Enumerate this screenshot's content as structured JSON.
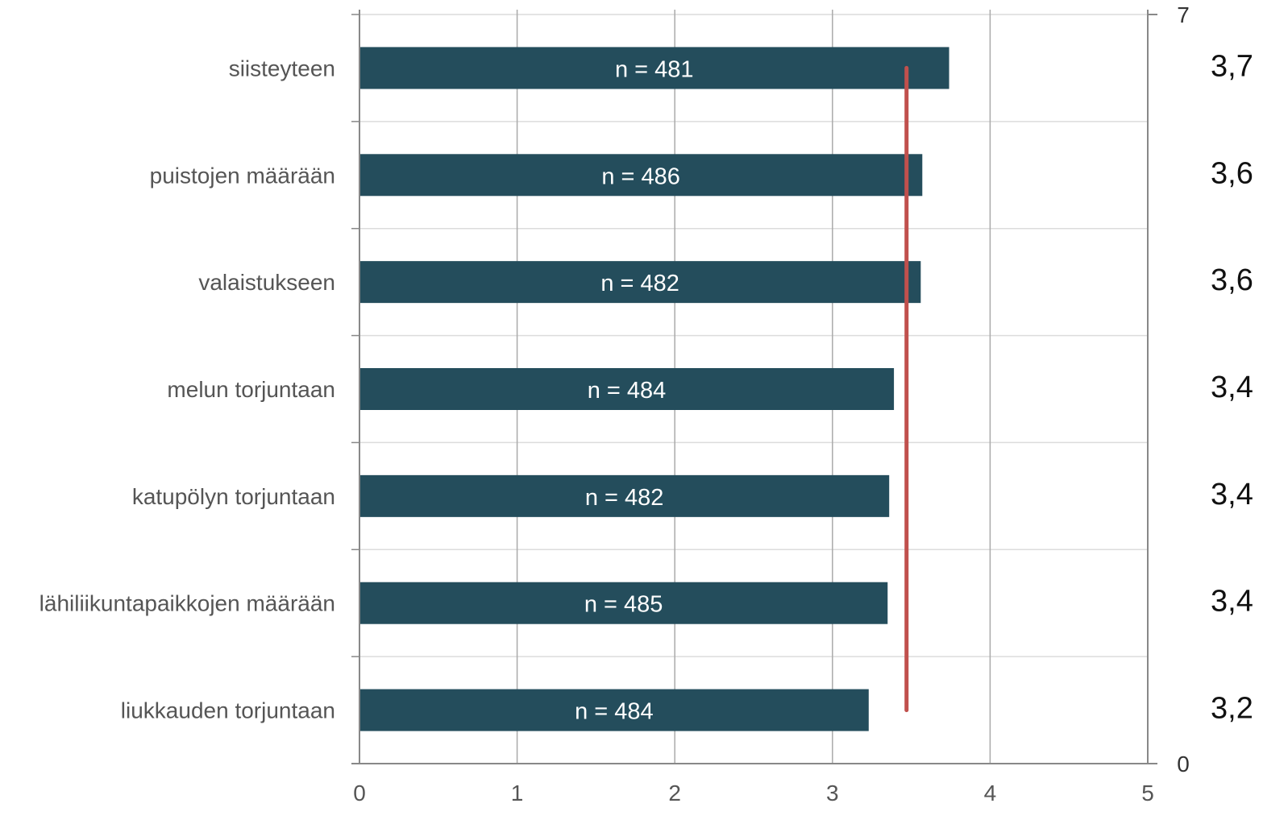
{
  "chart_data": {
    "type": "bar",
    "orientation": "horizontal",
    "title": "",
    "xlabel": "",
    "ylabel": "",
    "xlim": [
      0,
      5
    ],
    "x_ticks": [
      "0",
      "1",
      "2",
      "3",
      "4",
      "5"
    ],
    "secondary_axis_ticks": [
      "7",
      "0"
    ],
    "grid": true,
    "categories": [
      "siisteyteen",
      "puistojen määrään",
      "valaistukseen",
      "melun torjuntaan",
      "katupölyn torjuntaan",
      "lähiliikuntapaikkojen määrään",
      "liukkauden torjuntaan"
    ],
    "values": [
      3.74,
      3.57,
      3.56,
      3.39,
      3.36,
      3.35,
      3.23
    ],
    "bar_labels": [
      "n = 481",
      "n = 486",
      "n = 482",
      "n = 484",
      "n = 482",
      "n = 485",
      "n = 484"
    ],
    "value_labels": [
      "3,7",
      "3,6",
      "3,6",
      "3,4",
      "3,4",
      "3,4",
      "3,2"
    ],
    "reference_line_value": 3.47,
    "colors": {
      "bar": "#244d5c",
      "reference_line": "#c0504d",
      "grid": "#dcdcdc",
      "axis": "#888888"
    }
  }
}
